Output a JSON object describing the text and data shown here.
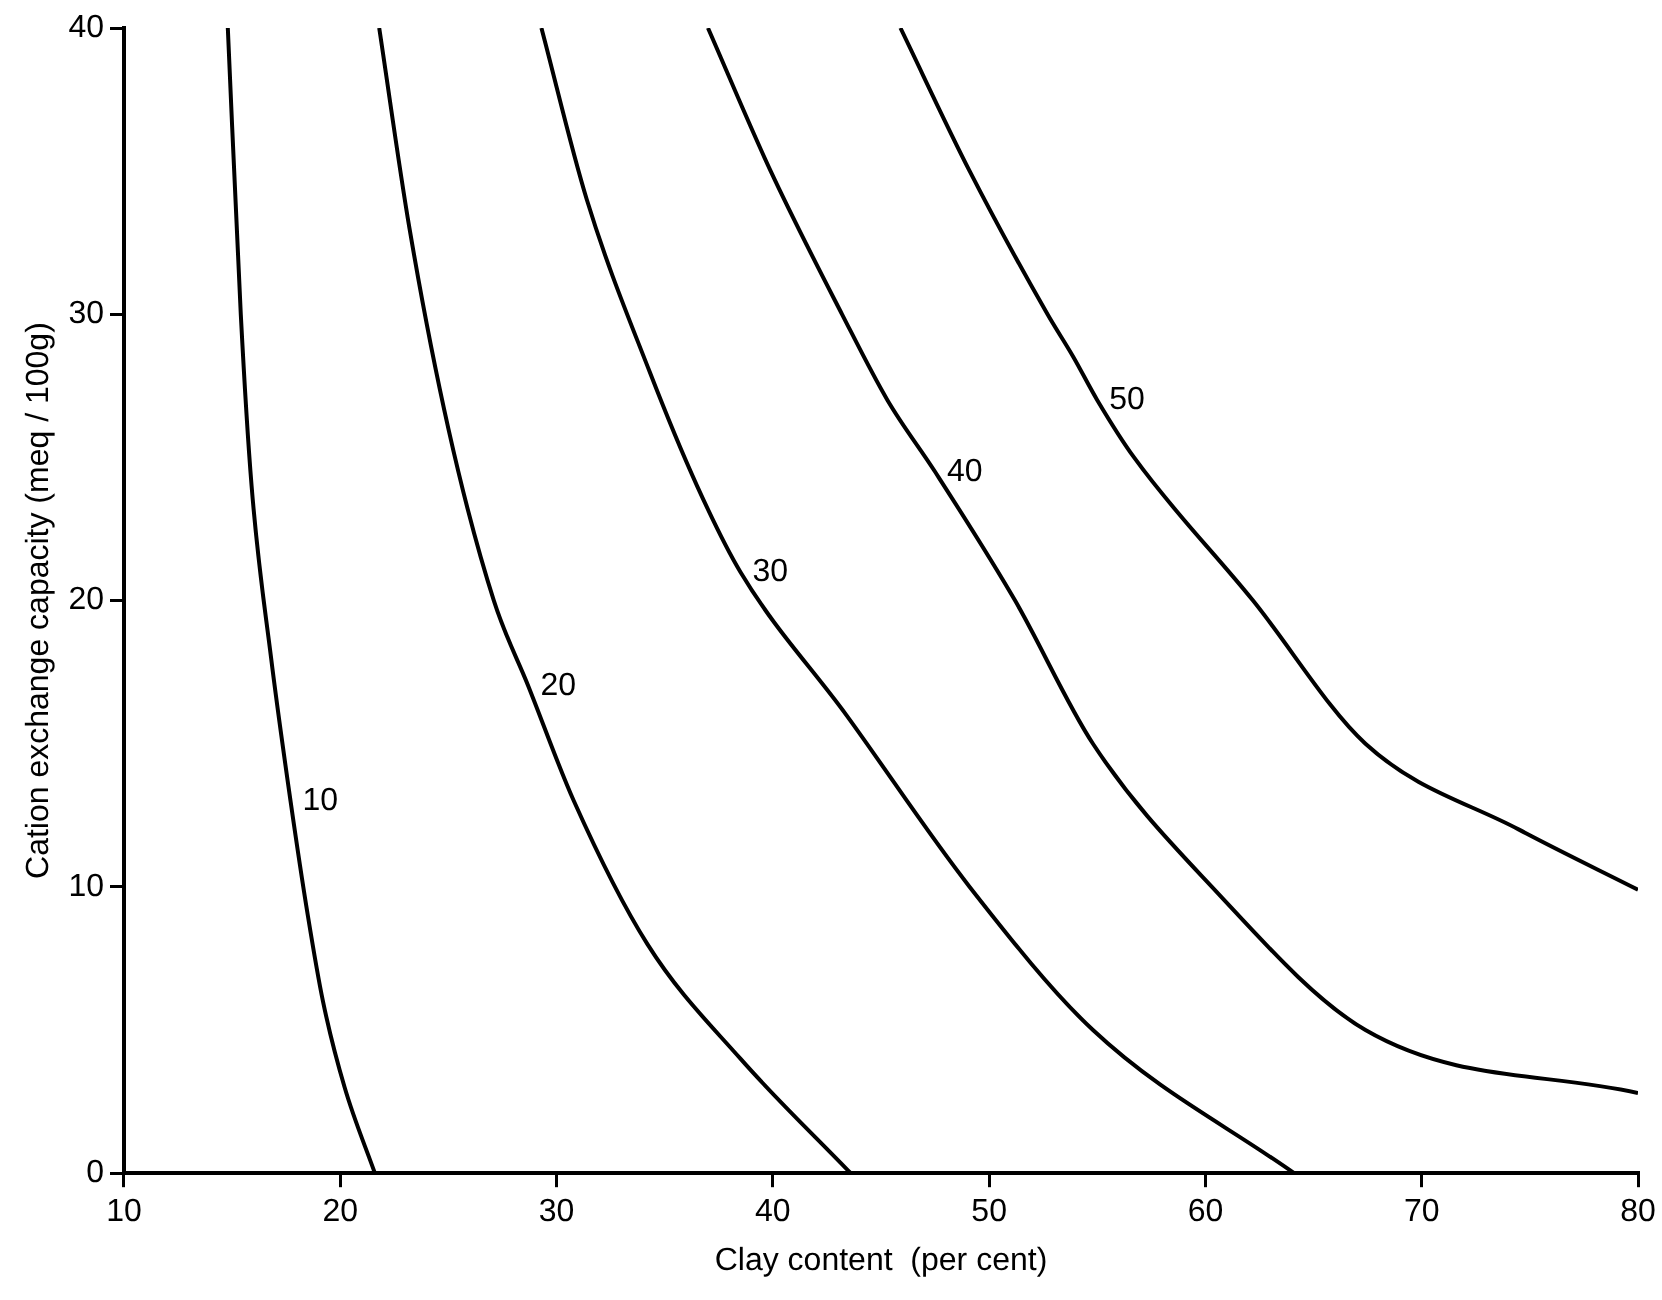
{
  "chart_data": {
    "type": "line",
    "xlabel": "Clay content  (per cent)",
    "ylabel": "Cation exchange capacity (meq / 100g)",
    "xlim": [
      10,
      80
    ],
    "xticks": [
      10,
      20,
      30,
      40,
      50,
      60,
      70,
      80
    ],
    "ylim": [
      0,
      40
    ],
    "yticks": [
      0,
      10,
      20,
      30,
      40
    ],
    "grid": false,
    "legend": false,
    "marker": "none",
    "line_style": "solid",
    "series": [
      {
        "name": "10",
        "color": "#000000",
        "x": [
          14.8,
          15.4,
          15.9,
          16.8,
          17.7,
          18.5,
          19.2,
          20.2,
          21.6
        ],
        "values": [
          40,
          30,
          24,
          18,
          13,
          9,
          6,
          3,
          0
        ]
      },
      {
        "name": "20",
        "color": "#000000",
        "x": [
          21.8,
          23.2,
          25.0,
          27.1,
          28.7,
          30.8,
          34.2,
          38.5,
          43.6
        ],
        "values": [
          40,
          33,
          26,
          20,
          17,
          13,
          8,
          4,
          0
        ]
      },
      {
        "name": "30",
        "color": "#000000",
        "x": [
          29.3,
          31.4,
          34.3,
          36.5,
          38.5,
          43.4,
          49.1,
          54.8,
          64.1
        ],
        "values": [
          40,
          34,
          28,
          24,
          21,
          16,
          10,
          5,
          0
        ]
      },
      {
        "name": "40",
        "color": "#000000",
        "x": [
          37.0,
          39.9,
          43.2,
          45.3,
          47.5,
          51.2,
          54.8,
          60.3,
          67.4,
          80
        ],
        "values": [
          40,
          35,
          30,
          27,
          24.5,
          20,
          15,
          10,
          5,
          2.8
        ]
      },
      {
        "name": "50",
        "color": "#000000",
        "x": [
          45.9,
          49.1,
          52.7,
          53.9,
          55.0,
          56.7,
          62.2,
          67.4,
          74.5,
          80
        ],
        "values": [
          40,
          35,
          30,
          28.5,
          27,
          25,
          20,
          15,
          12,
          9.9
        ]
      }
    ]
  }
}
